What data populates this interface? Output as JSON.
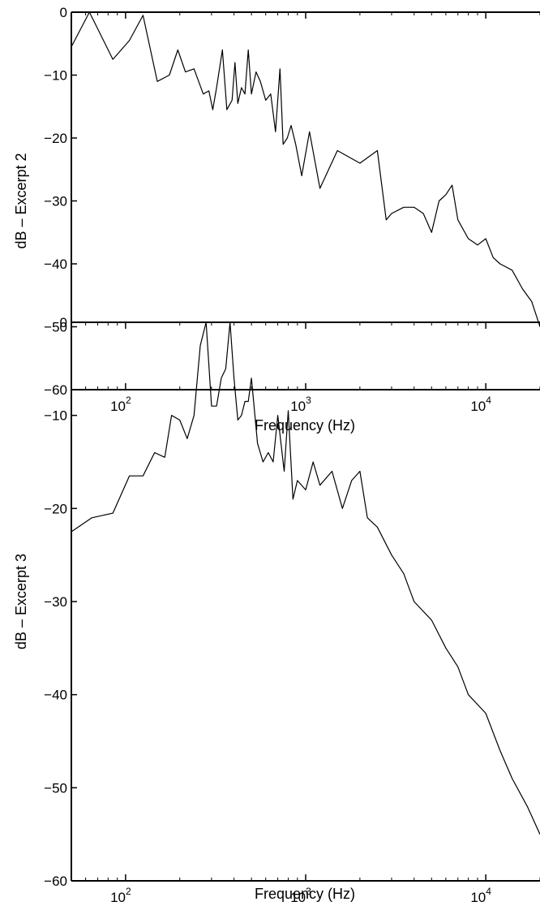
{
  "colors": {
    "line": "#000000",
    "axes": "#000000",
    "background": "#ffffff"
  },
  "chart_data": [
    {
      "type": "line",
      "title": "",
      "xlabel": "Frequency (Hz)",
      "ylabel": "dB – Excerpt 2",
      "xscale": "log",
      "xlim": [
        50,
        20000
      ],
      "ylim": [
        -60,
        0
      ],
      "yticks": [
        0,
        -10,
        -20,
        -30,
        -40,
        -50,
        -60
      ],
      "ytick_labels": [
        "0",
        "−10",
        "−20",
        "−30",
        "−40",
        "−50",
        "−60"
      ],
      "xticks": [
        100,
        1000,
        10000
      ],
      "xtick_labels": [
        {
          "base": "10",
          "exp": "2"
        },
        {
          "base": "10",
          "exp": "3"
        },
        {
          "base": "10",
          "exp": "4"
        }
      ],
      "grid": false,
      "legend": "none",
      "series": [
        {
          "x": [
            50,
            63,
            85,
            105,
            125,
            150,
            175,
            195,
            215,
            240,
            270,
            290,
            305,
            320,
            345,
            365,
            390,
            405,
            420,
            440,
            460,
            480,
            500,
            530,
            560,
            600,
            640,
            680,
            720,
            750,
            790,
            830,
            880,
            950,
            1050,
            1200,
            1500,
            2000,
            2500,
            2800,
            3000,
            3500,
            4000,
            4500,
            5000,
            5500,
            6000,
            6500,
            7000,
            8000,
            9000,
            10000,
            11000,
            12000,
            14000,
            16000,
            18000,
            20000
          ],
          "y": [
            -5.5,
            0,
            -7.5,
            -4.5,
            -0.5,
            -11,
            -10,
            -6,
            -9.5,
            -9,
            -13,
            -12.5,
            -15.5,
            -12,
            -6,
            -15.5,
            -14,
            -8,
            -14.5,
            -12,
            -13,
            -6,
            -13,
            -9.5,
            -11,
            -14,
            -13,
            -19,
            -9,
            -21,
            -20,
            -18,
            -21,
            -26,
            -19,
            -28,
            -22,
            -24,
            -22,
            -33,
            -32,
            -31,
            -31,
            -32,
            -35,
            -30,
            -29,
            -27.5,
            -33,
            -36,
            -37,
            -36,
            -39,
            -40,
            -41,
            -44,
            -46,
            -50
          ]
        }
      ]
    },
    {
      "type": "line",
      "title": "",
      "xlabel": "Frequency (Hz)",
      "ylabel": "dB – Excerpt 3",
      "xscale": "log",
      "xlim": [
        50,
        20000
      ],
      "ylim": [
        -60,
        0
      ],
      "yticks": [
        0,
        -10,
        -20,
        -30,
        -40,
        -50,
        -60
      ],
      "ytick_labels": [
        "0",
        "−10",
        "−20",
        "−30",
        "−40",
        "−50",
        "−60"
      ],
      "xticks": [
        100,
        1000,
        10000
      ],
      "xtick_labels": [
        {
          "base": "10",
          "exp": "2"
        },
        {
          "base": "10",
          "exp": "3"
        },
        {
          "base": "10",
          "exp": "4"
        }
      ],
      "grid": false,
      "legend": "none",
      "series": [
        {
          "x": [
            50,
            65,
            85,
            105,
            125,
            145,
            165,
            180,
            200,
            220,
            240,
            260,
            280,
            300,
            320,
            340,
            360,
            380,
            400,
            420,
            440,
            460,
            480,
            500,
            540,
            580,
            620,
            660,
            700,
            760,
            800,
            850,
            900,
            1000,
            1100,
            1200,
            1400,
            1600,
            1800,
            2000,
            2200,
            2500,
            3000,
            3500,
            4000,
            5000,
            6000,
            7000,
            8000,
            10000,
            12000,
            14000,
            17000,
            20000
          ],
          "y": [
            -22.5,
            -21,
            -20.5,
            -16.5,
            -16.5,
            -14,
            -14.5,
            -10,
            -10.5,
            -12.5,
            -10,
            -2.5,
            0,
            -9,
            -9,
            -6,
            -5,
            0,
            -6,
            -10.5,
            -10,
            -8.5,
            -8.5,
            -6,
            -13,
            -15,
            -14,
            -15,
            -10,
            -16,
            -9.5,
            -19,
            -17,
            -18,
            -15,
            -17.5,
            -16,
            -20,
            -17,
            -16,
            -21,
            -22,
            -25,
            -27,
            -30,
            -32,
            -35,
            -37,
            -40,
            -42,
            -46,
            -49,
            -52,
            -55
          ]
        }
      ]
    }
  ]
}
